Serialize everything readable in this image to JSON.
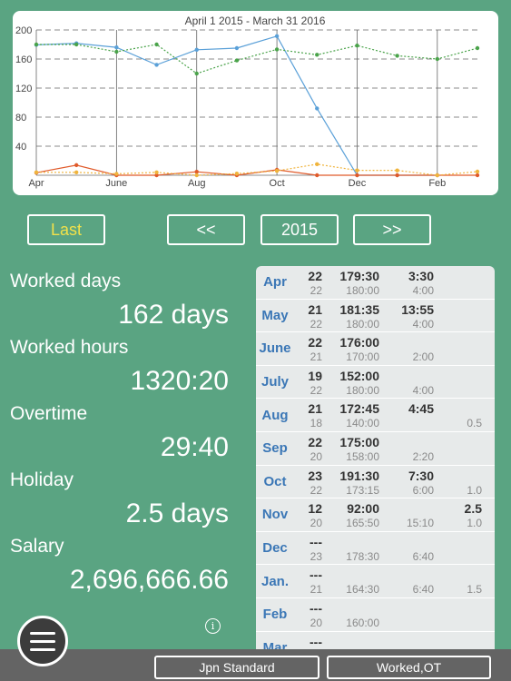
{
  "chart_data": {
    "type": "line",
    "title": "April 1 2015 - March 31 2016",
    "categories": [
      "Apr",
      "May",
      "June",
      "July",
      "Aug",
      "Sep",
      "Oct",
      "Nov",
      "Dec",
      "Jan",
      "Feb",
      "Mar"
    ],
    "x_tick_labels": [
      "Apr",
      "June",
      "Aug",
      "Oct",
      "Dec",
      "Feb"
    ],
    "y_ticks": [
      "200",
      "160",
      "120",
      "80",
      "40"
    ],
    "ylim": [
      0,
      200
    ],
    "series": [
      {
        "color": "#5aa0d8",
        "style": "solid",
        "values": [
          179.5,
          181.6,
          176,
          152,
          172.75,
          175,
          191.5,
          92,
          0,
          0,
          0,
          null
        ]
      },
      {
        "color": "#4aa34a",
        "style": "dotted",
        "values": [
          180,
          180,
          170,
          180,
          140,
          158,
          173.25,
          165.8,
          178.5,
          164.5,
          160,
          175
        ]
      },
      {
        "color": "#e05a2a",
        "style": "solid",
        "values": [
          3.5,
          13.9,
          0,
          0,
          4.75,
          0,
          7.5,
          0,
          0,
          0,
          0,
          0
        ]
      },
      {
        "color": "#f0b43c",
        "style": "dotted",
        "values": [
          4,
          4,
          2,
          4,
          0,
          2.3,
          6,
          15.2,
          6.7,
          6.7,
          0,
          5
        ]
      }
    ]
  },
  "controls": {
    "last": "Last",
    "prev": "<<",
    "year": "2015",
    "next": ">>"
  },
  "stats": [
    {
      "label": "Worked days",
      "value": "162 days"
    },
    {
      "label": "Worked hours",
      "value": "1320:20"
    },
    {
      "label": "Overtime",
      "value": "29:40"
    },
    {
      "label": "Holiday",
      "value": "2.5 days"
    },
    {
      "label": "Salary",
      "value": "2,696,666.66"
    }
  ],
  "months": [
    {
      "month": "Apr",
      "days": "22",
      "days_sub": "22",
      "hours": "179:30",
      "hours_sub": "180:00",
      "ot": "3:30",
      "ot_sub": "4:00",
      "hol": "",
      "hol_sub": ""
    },
    {
      "month": "May",
      "days": "21",
      "days_sub": "22",
      "hours": "181:35",
      "hours_sub": "180:00",
      "ot": "13:55",
      "ot_sub": "4:00",
      "hol": "",
      "hol_sub": ""
    },
    {
      "month": "June",
      "days": "22",
      "days_sub": "21",
      "hours": "176:00",
      "hours_sub": "170:00",
      "ot": "",
      "ot_sub": "2:00",
      "hol": "",
      "hol_sub": ""
    },
    {
      "month": "July",
      "days": "19",
      "days_sub": "22",
      "hours": "152:00",
      "hours_sub": "180:00",
      "ot": "",
      "ot_sub": "4:00",
      "hol": "",
      "hol_sub": ""
    },
    {
      "month": "Aug",
      "days": "21",
      "days_sub": "18",
      "hours": "172:45",
      "hours_sub": "140:00",
      "ot": "4:45",
      "ot_sub": "",
      "hol": "",
      "hol_sub": "0.5"
    },
    {
      "month": "Sep",
      "days": "22",
      "days_sub": "20",
      "hours": "175:00",
      "hours_sub": "158:00",
      "ot": "",
      "ot_sub": "2:20",
      "hol": "",
      "hol_sub": ""
    },
    {
      "month": "Oct",
      "days": "23",
      "days_sub": "22",
      "hours": "191:30",
      "hours_sub": "173:15",
      "ot": "7:30",
      "ot_sub": "6:00",
      "hol": "",
      "hol_sub": "1.0"
    },
    {
      "month": "Nov",
      "days": "12",
      "days_sub": "20",
      "hours": "92:00",
      "hours_sub": "165:50",
      "ot": "",
      "ot_sub": "15:10",
      "hol": "2.5",
      "hol_sub": "1.0"
    },
    {
      "month": "Dec",
      "days": "---",
      "days_sub": "23",
      "hours": "",
      "hours_sub": "178:30",
      "ot": "",
      "ot_sub": "6:40",
      "hol": "",
      "hol_sub": ""
    },
    {
      "month": "Jan.",
      "days": "---",
      "days_sub": "21",
      "hours": "",
      "hours_sub": "164:30",
      "ot": "",
      "ot_sub": "6:40",
      "hol": "",
      "hol_sub": "1.5"
    },
    {
      "month": "Feb",
      "days": "---",
      "days_sub": "20",
      "hours": "",
      "hours_sub": "160:00",
      "ot": "",
      "ot_sub": "",
      "hol": "",
      "hol_sub": ""
    },
    {
      "month": "Mar",
      "days": "---",
      "days_sub": "",
      "hours": "",
      "hours_sub": "",
      "ot": "",
      "ot_sub": "",
      "hol": "",
      "hol_sub": ""
    }
  ],
  "icons": {
    "info": "info-icon",
    "menu": "hamburger-menu-icon"
  },
  "info_glyph": "i",
  "toolbar": {
    "left": "Jpn Standard",
    "right": "Worked,OT"
  }
}
